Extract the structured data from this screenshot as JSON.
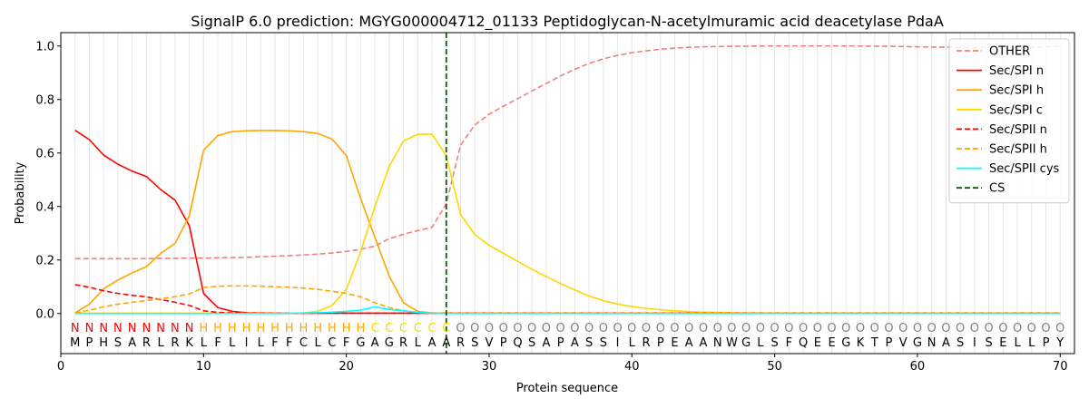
{
  "chart_data": {
    "type": "line",
    "title": "SignalP 6.0 prediction: MGYG000004712_01133 Peptidoglycan-N-acetylmuramic acid deacetylase PdaA",
    "xlabel": "Protein sequence",
    "ylabel": "Probability",
    "xlim": [
      0,
      71
    ],
    "ylim": [
      -0.15,
      1.05
    ],
    "xticks": [
      0,
      10,
      20,
      30,
      40,
      50,
      60,
      70
    ],
    "yticks": [
      0.0,
      0.2,
      0.4,
      0.6,
      0.8,
      1.0
    ],
    "xtick_labels": [
      "0",
      "10",
      "20",
      "30",
      "40",
      "50",
      "60",
      "70"
    ],
    "ytick_labels": [
      "0.0",
      "0.2",
      "0.4",
      "0.6",
      "0.8",
      "1.0"
    ],
    "x": [
      1,
      2,
      3,
      4,
      5,
      6,
      7,
      8,
      9,
      10,
      11,
      12,
      13,
      14,
      15,
      16,
      17,
      18,
      19,
      20,
      21,
      22,
      23,
      24,
      25,
      26,
      27,
      28,
      29,
      30,
      31,
      32,
      33,
      34,
      35,
      36,
      37,
      38,
      39,
      40,
      41,
      42,
      43,
      44,
      45,
      46,
      47,
      48,
      49,
      50,
      51,
      52,
      53,
      54,
      55,
      56,
      57,
      58,
      59,
      60,
      61,
      62,
      63,
      64,
      65,
      66,
      67,
      68,
      69,
      70
    ],
    "sequence": [
      "M",
      "P",
      "H",
      "S",
      "A",
      "R",
      "L",
      "R",
      "K",
      "L",
      "F",
      "L",
      "I",
      "L",
      "F",
      "F",
      "C",
      "L",
      "C",
      "F",
      "G",
      "A",
      "G",
      "R",
      "L",
      "A",
      "A",
      "R",
      "S",
      "V",
      "P",
      "Q",
      "S",
      "A",
      "P",
      "A",
      "S",
      "S",
      "I",
      "L",
      "R",
      "P",
      "E",
      "A",
      "A",
      "N",
      "W",
      "G",
      "L",
      "S",
      "F",
      "Q",
      "E",
      "E",
      "G",
      "K",
      "T",
      "P",
      "V",
      "G",
      "N",
      "A",
      "S",
      "I",
      "S",
      "E",
      "L",
      "L",
      "P",
      "Y"
    ],
    "region_labels": [
      "N",
      "N",
      "N",
      "N",
      "N",
      "N",
      "N",
      "N",
      "N",
      "H",
      "H",
      "H",
      "H",
      "H",
      "H",
      "H",
      "H",
      "H",
      "H",
      "H",
      "H",
      "C",
      "C",
      "C",
      "C",
      "C",
      "C",
      "O",
      "O",
      "O",
      "O",
      "O",
      "O",
      "O",
      "O",
      "O",
      "O",
      "O",
      "O",
      "O",
      "O",
      "O",
      "O",
      "O",
      "O",
      "O",
      "O",
      "O",
      "O",
      "O",
      "O",
      "O",
      "O",
      "O",
      "O",
      "O",
      "O",
      "O",
      "O",
      "O",
      "O",
      "O",
      "O",
      "O",
      "O",
      "O",
      "O",
      "O",
      "O",
      "O"
    ],
    "region_colors": {
      "N": "#ff0000",
      "H": "#ffa500",
      "C": "#ffd700",
      "O": "#808080"
    },
    "cleavage_site": 27,
    "legend_position": "upper right",
    "series": [
      {
        "name": "OTHER",
        "color": "#f08080",
        "dash": "dashed",
        "values": [
          0.205,
          0.205,
          0.205,
          0.205,
          0.205,
          0.205,
          0.206,
          0.206,
          0.207,
          0.207,
          0.208,
          0.209,
          0.21,
          0.212,
          0.214,
          0.216,
          0.219,
          0.222,
          0.226,
          0.232,
          0.24,
          0.252,
          0.28,
          0.296,
          0.31,
          0.322,
          0.41,
          0.63,
          0.705,
          0.745,
          0.775,
          0.803,
          0.832,
          0.86,
          0.888,
          0.913,
          0.935,
          0.952,
          0.965,
          0.975,
          0.982,
          0.988,
          0.992,
          0.995,
          0.997,
          0.998,
          0.999,
          0.999,
          1.0,
          1.0,
          1.0,
          1.0,
          1.0,
          1.0,
          1.0,
          1.0,
          0.999,
          0.999,
          0.998,
          0.997,
          0.996,
          0.996,
          0.995,
          0.995,
          0.995,
          0.995,
          0.995,
          0.996,
          0.997,
          0.999
        ]
      },
      {
        "name": "Sec/SPI n",
        "color": "#ff0000",
        "dash": "solid",
        "values": [
          0.685,
          0.65,
          0.592,
          0.558,
          0.532,
          0.512,
          0.463,
          0.424,
          0.328,
          0.075,
          0.022,
          0.008,
          0.003,
          0.002,
          0.001,
          0.001,
          0.001,
          0.001,
          0.001,
          0.001,
          0.001,
          0.001,
          0.001,
          0.001,
          0.001,
          0.001,
          0.001,
          0.001,
          0.001,
          0.001,
          0.001,
          0.001,
          0.001,
          0.001,
          0.001,
          0.001,
          0.001,
          0.001,
          0.001,
          0.001,
          0.001,
          0.001,
          0.001,
          0.001,
          0.001,
          0.001,
          0.001,
          0.001,
          0.001,
          0.001,
          0.001,
          0.001,
          0.001,
          0.001,
          0.001,
          0.001,
          0.001,
          0.001,
          0.001,
          0.001,
          0.001,
          0.001,
          0.001,
          0.001,
          0.001,
          0.001,
          0.001,
          0.001,
          0.001,
          0.001
        ]
      },
      {
        "name": "Sec/SPI h",
        "color": "#ffa500",
        "dash": "solid",
        "values": [
          0.002,
          0.035,
          0.092,
          0.125,
          0.152,
          0.175,
          0.225,
          0.262,
          0.365,
          0.61,
          0.665,
          0.68,
          0.683,
          0.684,
          0.684,
          0.683,
          0.68,
          0.673,
          0.652,
          0.59,
          0.43,
          0.285,
          0.14,
          0.04,
          0.008,
          0.002,
          0.001,
          0.001,
          0.001,
          0.001,
          0.001,
          0.001,
          0.001,
          0.001,
          0.001,
          0.001,
          0.001,
          0.001,
          0.001,
          0.001,
          0.001,
          0.001,
          0.001,
          0.001,
          0.001,
          0.001,
          0.001,
          0.001,
          0.001,
          0.001,
          0.001,
          0.001,
          0.001,
          0.001,
          0.001,
          0.001,
          0.001,
          0.001,
          0.001,
          0.001,
          0.001,
          0.001,
          0.001,
          0.001,
          0.001,
          0.001,
          0.001,
          0.001,
          0.001,
          0.001
        ]
      },
      {
        "name": "Sec/SPI c",
        "color": "#ffd700",
        "dash": "solid",
        "values": [
          0.001,
          0.001,
          0.001,
          0.001,
          0.001,
          0.001,
          0.001,
          0.001,
          0.001,
          0.001,
          0.001,
          0.001,
          0.001,
          0.001,
          0.001,
          0.001,
          0.002,
          0.008,
          0.03,
          0.09,
          0.23,
          0.4,
          0.55,
          0.645,
          0.67,
          0.67,
          0.59,
          0.37,
          0.295,
          0.255,
          0.225,
          0.195,
          0.165,
          0.138,
          0.112,
          0.088,
          0.065,
          0.048,
          0.035,
          0.026,
          0.019,
          0.014,
          0.01,
          0.007,
          0.005,
          0.004,
          0.003,
          0.002,
          0.002,
          0.001,
          0.001,
          0.001,
          0.001,
          0.001,
          0.001,
          0.001,
          0.001,
          0.001,
          0.001,
          0.001,
          0.001,
          0.001,
          0.001,
          0.001,
          0.001,
          0.001,
          0.001,
          0.001,
          0.001,
          0.001
        ]
      },
      {
        "name": "Sec/SPII n",
        "color": "#ff0000",
        "dash": "dashed",
        "values": [
          0.108,
          0.098,
          0.085,
          0.075,
          0.068,
          0.062,
          0.052,
          0.042,
          0.03,
          0.01,
          0.004,
          0.002,
          0.001,
          0.001,
          0.001,
          0.001,
          0.001,
          0.001,
          0.001,
          0.001,
          0.001,
          0.001,
          0.001,
          0.001,
          0.001,
          0.001,
          0.001,
          0.001,
          0.001,
          0.001,
          0.001,
          0.001,
          0.001,
          0.001,
          0.001,
          0.001,
          0.001,
          0.001,
          0.001,
          0.001,
          0.001,
          0.001,
          0.001,
          0.001,
          0.001,
          0.001,
          0.001,
          0.001,
          0.001,
          0.001,
          0.001,
          0.001,
          0.001,
          0.001,
          0.001,
          0.001,
          0.001,
          0.001,
          0.001,
          0.001,
          0.001,
          0.001,
          0.001,
          0.001,
          0.001,
          0.001,
          0.001,
          0.001,
          0.001,
          0.001
        ]
      },
      {
        "name": "Sec/SPII h",
        "color": "#ffa500",
        "dash": "dashed",
        "values": [
          0.002,
          0.012,
          0.025,
          0.035,
          0.042,
          0.048,
          0.055,
          0.063,
          0.073,
          0.097,
          0.102,
          0.103,
          0.103,
          0.102,
          0.1,
          0.098,
          0.095,
          0.09,
          0.083,
          0.075,
          0.062,
          0.04,
          0.022,
          0.01,
          0.004,
          0.002,
          0.001,
          0.001,
          0.001,
          0.001,
          0.001,
          0.001,
          0.001,
          0.001,
          0.001,
          0.001,
          0.001,
          0.001,
          0.001,
          0.001,
          0.001,
          0.001,
          0.001,
          0.001,
          0.001,
          0.001,
          0.001,
          0.001,
          0.001,
          0.001,
          0.001,
          0.001,
          0.001,
          0.001,
          0.001,
          0.001,
          0.001,
          0.001,
          0.001,
          0.001,
          0.001,
          0.001,
          0.001,
          0.001,
          0.001,
          0.001,
          0.001,
          0.001,
          0.001,
          0.001
        ]
      },
      {
        "name": "Sec/SPII cys",
        "color": "#00ffff",
        "dash": "solid",
        "values": [
          0.0,
          0.0,
          0.0,
          0.0,
          0.0,
          0.0,
          0.0,
          0.0,
          0.0,
          0.0,
          0.0,
          0.0,
          0.0,
          0.0,
          0.0,
          0.001,
          0.002,
          0.003,
          0.005,
          0.008,
          0.012,
          0.025,
          0.015,
          0.01,
          0.004,
          0.001,
          0.0,
          0.0,
          0.0,
          0.0,
          0.0,
          0.0,
          0.0,
          0.0,
          0.0,
          0.0,
          0.0,
          0.0,
          0.0,
          0.0,
          0.0,
          0.0,
          0.0,
          0.0,
          0.0,
          0.0,
          0.0,
          0.0,
          0.0,
          0.0,
          0.0,
          0.0,
          0.0,
          0.0,
          0.0,
          0.0,
          0.0,
          0.0,
          0.0,
          0.0,
          0.0,
          0.0,
          0.0,
          0.0,
          0.0,
          0.0,
          0.0,
          0.0,
          0.0,
          0.0
        ]
      }
    ],
    "cs_legend": {
      "name": "CS",
      "color": "#006400",
      "dash": "dashed"
    }
  }
}
